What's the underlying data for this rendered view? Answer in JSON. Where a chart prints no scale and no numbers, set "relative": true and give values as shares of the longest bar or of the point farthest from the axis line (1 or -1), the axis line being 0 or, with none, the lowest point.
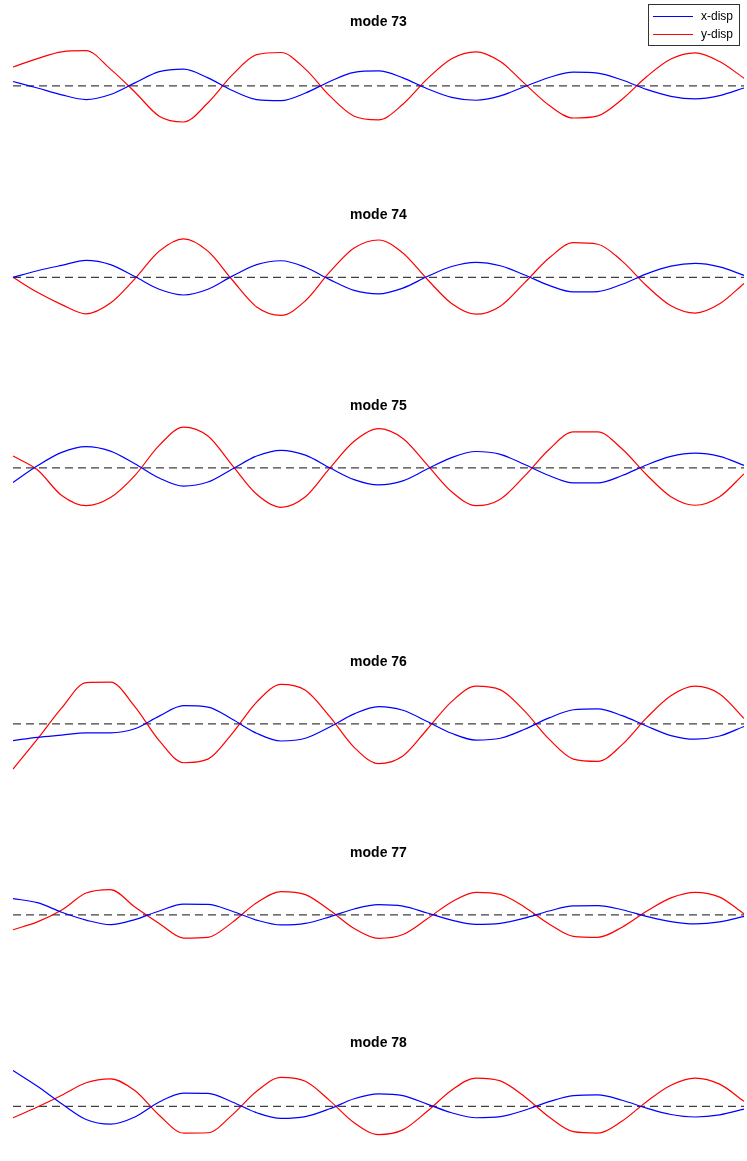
{
  "chart_data": [
    {
      "type": "line",
      "title": "mode 73",
      "categories": [
        null,
        null,
        null,
        null,
        null,
        null,
        null,
        null,
        null,
        null,
        null,
        null,
        null,
        null,
        null,
        null,
        null,
        null,
        null,
        null,
        null,
        null,
        null,
        null,
        null,
        null,
        null,
        null,
        null,
        null,
        null
      ],
      "relative": true,
      "marker": "none",
      "legend": "top right",
      "ref_lines": [
        {
          "axis": "y",
          "value": 0,
          "color": "#404040",
          "line_style": "dashed"
        }
      ],
      "series": [
        {
          "name": "x-disp",
          "color": "#0000ff",
          "values": [
            0.12,
            -0.06,
            -0.25,
            -0.38,
            -0.24,
            0.08,
            0.39,
            0.46,
            0.22,
            -0.13,
            -0.38,
            -0.41,
            -0.2,
            0.12,
            0.37,
            0.41,
            0.22,
            -0.08,
            -0.32,
            -0.4,
            -0.28,
            -0.02,
            0.23,
            0.38,
            0.35,
            0.16,
            -0.1,
            -0.29,
            -0.36,
            -0.27,
            -0.06
          ]
        },
        {
          "name": "y-disp",
          "color": "#ff0000",
          "values": [
            0.52,
            0.75,
            0.94,
            0.97,
            0.46,
            -0.17,
            -0.84,
            -1,
            -0.47,
            0.3,
            0.86,
            0.92,
            0.46,
            -0.28,
            -0.84,
            -0.94,
            -0.51,
            0.19,
            0.75,
            0.94,
            0.67,
            0.06,
            -0.54,
            -0.89,
            -0.83,
            -0.37,
            0.25,
            0.74,
            0.91,
            0.67,
            0.21
          ]
        }
      ]
    },
    {
      "type": "line",
      "title": "mode 74",
      "categories": [
        null,
        null,
        null,
        null,
        null,
        null,
        null,
        null,
        null,
        null,
        null,
        null,
        null,
        null,
        null,
        null,
        null,
        null,
        null,
        null,
        null,
        null,
        null,
        null,
        null,
        null,
        null,
        null,
        null,
        null,
        null
      ],
      "relative": true,
      "marker": "none",
      "ref_lines": [
        {
          "axis": "y",
          "value": 0,
          "color": "#404040",
          "line_style": "dashed"
        }
      ],
      "series": [
        {
          "color": "#0000ff",
          "values": [
            0,
            0.17,
            0.31,
            0.44,
            0.33,
            0.02,
            -0.31,
            -0.46,
            -0.31,
            0.03,
            0.33,
            0.43,
            0.26,
            -0.06,
            -0.34,
            -0.43,
            -0.28,
            0.02,
            0.28,
            0.39,
            0.3,
            0.06,
            -0.21,
            -0.38,
            -0.37,
            -0.18,
            0.09,
            0.29,
            0.36,
            0.27,
            0.05
          ]
        },
        {
          "color": "#ff0000",
          "values": [
            0,
            -0.39,
            -0.71,
            -0.95,
            -0.67,
            -0.04,
            0.68,
            1,
            0.68,
            -0.07,
            -0.77,
            -0.99,
            -0.61,
            0.14,
            0.76,
            0.97,
            0.63,
            -0.05,
            -0.68,
            -0.96,
            -0.75,
            -0.14,
            0.5,
            0.9,
            0.86,
            0.42,
            -0.22,
            -0.74,
            -0.93,
            -0.69,
            -0.16
          ]
        }
      ]
    },
    {
      "type": "line",
      "title": "mode 75",
      "categories": [
        null,
        null,
        null,
        null,
        null,
        null,
        null,
        null,
        null,
        null,
        null,
        null,
        null,
        null,
        null,
        null,
        null,
        null,
        null,
        null,
        null,
        null,
        null,
        null,
        null,
        null,
        null,
        null,
        null,
        null,
        null
      ],
      "relative": true,
      "marker": "none",
      "ref_lines": [
        {
          "axis": "y",
          "value": 0,
          "color": "#404040",
          "line_style": "dashed"
        }
      ],
      "series": [
        {
          "color": "#0000ff",
          "values": [
            -0.36,
            0.05,
            0.38,
            0.52,
            0.41,
            0.1,
            -0.25,
            -0.45,
            -0.35,
            -0.03,
            0.29,
            0.43,
            0.31,
            0,
            -0.29,
            -0.42,
            -0.32,
            -0.03,
            0.25,
            0.4,
            0.33,
            0.08,
            -0.19,
            -0.37,
            -0.37,
            -0.19,
            0.07,
            0.28,
            0.36,
            0.28,
            0.06
          ]
        },
        {
          "color": "#ff0000",
          "values": [
            0.29,
            -0.05,
            -0.68,
            -0.93,
            -0.73,
            -0.19,
            0.55,
            1,
            0.78,
            0.06,
            -0.65,
            -0.97,
            -0.71,
            -0.01,
            0.65,
            0.96,
            0.72,
            0.07,
            -0.59,
            -0.93,
            -0.77,
            -0.2,
            0.45,
            0.88,
            0.88,
            0.46,
            -0.17,
            -0.71,
            -0.92,
            -0.71,
            -0.15
          ]
        }
      ]
    },
    {
      "type": "line",
      "title": "mode 76",
      "categories": [
        null,
        null,
        null,
        null,
        null,
        null,
        null,
        null,
        null,
        null,
        null,
        null,
        null,
        null,
        null,
        null,
        null,
        null,
        null,
        null,
        null,
        null,
        null,
        null,
        null,
        null,
        null,
        null,
        null,
        null,
        null
      ],
      "relative": true,
      "marker": "none",
      "ref_lines": [
        {
          "axis": "y",
          "value": 0,
          "color": "#404040",
          "line_style": "dashed"
        }
      ],
      "series": [
        {
          "color": "#0000ff",
          "values": [
            -0.37,
            -0.3,
            -0.25,
            -0.2,
            -0.2,
            -0.11,
            0.17,
            0.4,
            0.37,
            0.1,
            -0.21,
            -0.38,
            -0.32,
            -0.07,
            0.22,
            0.38,
            0.3,
            0.05,
            -0.21,
            -0.36,
            -0.32,
            -0.12,
            0.13,
            0.31,
            0.33,
            0.18,
            -0.05,
            -0.26,
            -0.34,
            -0.27,
            -0.06
          ]
        },
        {
          "color": "#ff0000",
          "values": [
            -1,
            -0.34,
            0.35,
            0.91,
            0.92,
            0.38,
            -0.37,
            -0.86,
            -0.78,
            -0.21,
            0.48,
            0.87,
            0.74,
            0.16,
            -0.52,
            -0.88,
            -0.71,
            -0.12,
            0.49,
            0.83,
            0.75,
            0.28,
            -0.34,
            -0.78,
            -0.83,
            -0.46,
            0.13,
            0.62,
            0.83,
            0.66,
            0.12
          ]
        }
      ]
    },
    {
      "type": "line",
      "title": "mode 77",
      "categories": [
        null,
        null,
        null,
        null,
        null,
        null,
        null,
        null,
        null,
        null,
        null,
        null,
        null,
        null,
        null,
        null,
        null,
        null,
        null,
        null,
        null,
        null,
        null,
        null,
        null,
        null,
        null,
        null,
        null,
        null,
        null
      ],
      "relative": true,
      "marker": "none",
      "ref_lines": [
        {
          "axis": "y",
          "value": 0,
          "color": "#404040",
          "line_style": "dashed"
        }
      ],
      "series": [
        {
          "color": "#0000ff",
          "values": [
            0.64,
            0.48,
            0.1,
            -0.21,
            -0.39,
            -0.19,
            0.15,
            0.42,
            0.41,
            0.14,
            -0.21,
            -0.4,
            -0.34,
            -0.08,
            0.23,
            0.4,
            0.34,
            0.07,
            -0.21,
            -0.38,
            -0.34,
            -0.13,
            0.15,
            0.35,
            0.36,
            0.2,
            -0.06,
            -0.27,
            -0.36,
            -0.28,
            -0.06
          ]
        },
        {
          "color": "#ff0000",
          "values": [
            -0.59,
            -0.28,
            0.19,
            0.86,
            1,
            0.31,
            -0.34,
            -0.92,
            -0.89,
            -0.3,
            0.48,
            0.92,
            0.8,
            0.18,
            -0.54,
            -0.93,
            -0.78,
            -0.16,
            0.51,
            0.89,
            0.81,
            0.3,
            -0.36,
            -0.85,
            -0.89,
            -0.49,
            0.14,
            0.67,
            0.89,
            0.7,
            0.04
          ]
        }
      ]
    },
    {
      "type": "line",
      "title": "mode 78",
      "categories": [
        null,
        null,
        null,
        null,
        null,
        null,
        null,
        null,
        null,
        null,
        null,
        null,
        null,
        null,
        null,
        null,
        null,
        null,
        null,
        null,
        null,
        null,
        null,
        null,
        null,
        null,
        null,
        null,
        null,
        null,
        null
      ],
      "relative": true,
      "marker": "none",
      "ref_lines": [
        {
          "axis": "y",
          "value": 0,
          "color": "#404040",
          "line_style": "dashed"
        }
      ],
      "series": [
        {
          "color": "#0000ff",
          "values": [
            1,
            0.56,
            0.07,
            -0.37,
            -0.5,
            -0.3,
            0.12,
            0.37,
            0.36,
            0.12,
            -0.18,
            -0.34,
            -0.29,
            -0.07,
            0.21,
            0.35,
            0.3,
            0.06,
            -0.18,
            -0.32,
            -0.29,
            -0.11,
            0.13,
            0.3,
            0.32,
            0.17,
            -0.05,
            -0.23,
            -0.3,
            -0.24,
            -0.08
          ]
        },
        {
          "color": "#ff0000",
          "values": [
            -0.32,
            -0.02,
            0.31,
            0.66,
            0.77,
            0.44,
            -0.25,
            -0.75,
            -0.74,
            -0.24,
            0.42,
            0.81,
            0.7,
            0.16,
            -0.46,
            -0.79,
            -0.66,
            -0.14,
            0.45,
            0.79,
            0.71,
            0.27,
            -0.3,
            -0.71,
            -0.75,
            -0.41,
            0.13,
            0.59,
            0.79,
            0.62,
            0.14
          ]
        }
      ]
    }
  ]
}
